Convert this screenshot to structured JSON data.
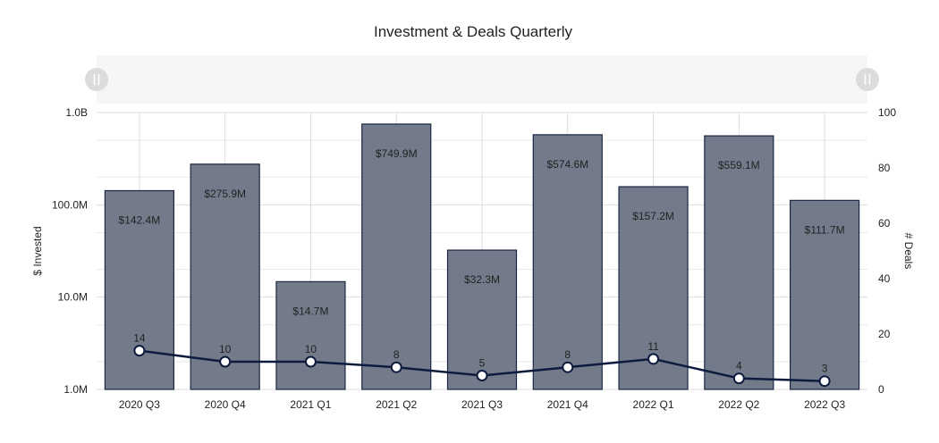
{
  "chart_data": {
    "type": "bar",
    "title": "Investment & Deals Quarterly",
    "categories": [
      "2020 Q3",
      "2020 Q4",
      "2021 Q1",
      "2021 Q2",
      "2021 Q3",
      "2021 Q4",
      "2022 Q1",
      "2022 Q2",
      "2022 Q3"
    ],
    "series": [
      {
        "type": "bar",
        "axis": "left",
        "values": [
          142400000,
          275900000,
          14700000,
          749900000,
          32300000,
          574600000,
          157200000,
          559100000,
          111700000
        ],
        "labels": [
          "$142.4M",
          "$275.9M",
          "$14.7M",
          "$749.9M",
          "$32.3M",
          "$574.6M",
          "$157.2M",
          "$559.1M",
          "$111.7M"
        ]
      },
      {
        "type": "line",
        "axis": "right",
        "values": [
          14,
          10,
          10,
          8,
          5,
          8,
          11,
          4,
          3
        ],
        "labels": [
          "14",
          "10",
          "10",
          "8",
          "5",
          "8",
          "11",
          "4",
          "3"
        ]
      }
    ],
    "y_left": {
      "label": "$ Invested",
      "scale": "log",
      "range": [
        1000000,
        1000000000
      ],
      "ticks": [
        1000000,
        10000000,
        100000000,
        1000000000
      ],
      "tick_labels": [
        "1.0M",
        "10.0M",
        "100.0M",
        "1.0B"
      ]
    },
    "y_right": {
      "label": "# Deals",
      "scale": "linear",
      "range": [
        0,
        100
      ],
      "ticks": [
        0,
        20,
        40,
        60,
        80,
        100
      ],
      "tick_labels": [
        "0",
        "20",
        "40",
        "60",
        "80",
        "100"
      ]
    },
    "grid": true,
    "legend": "none",
    "has_range_slider": true,
    "colors": {
      "bar_fill": "#737b8a",
      "bar_stroke": "#1b2744",
      "line": "#0d1b3e",
      "marker_fill": "#ffffff",
      "grid": "#dddddd",
      "slider_bg": "#f6f6f6",
      "slider_handle": "#dcdcdc"
    }
  }
}
